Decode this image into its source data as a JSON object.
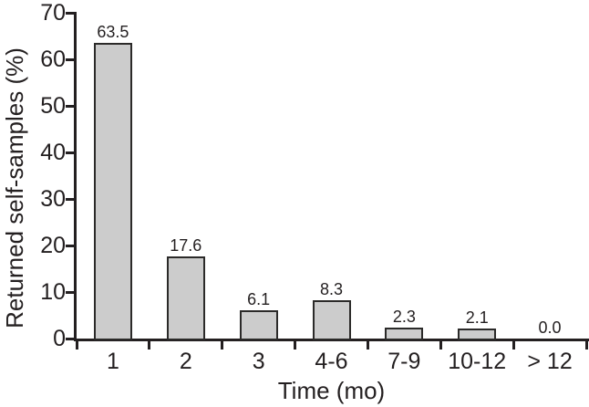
{
  "chart_data": {
    "type": "bar",
    "title": "",
    "xlabel": "Time (mo)",
    "ylabel": "Returned self-samples (%)",
    "categories": [
      "1",
      "2",
      "3",
      "4-6",
      "7-9",
      "10-12",
      "> 12"
    ],
    "values": [
      63.5,
      17.6,
      6.1,
      8.3,
      2.3,
      2.1,
      0.0
    ],
    "value_labels": [
      "63.5",
      "17.6",
      "6.1",
      "8.3",
      "2.3",
      "2.1",
      "0.0"
    ],
    "ylim": [
      0,
      70
    ],
    "yticks": [
      0,
      10,
      20,
      30,
      40,
      50,
      60,
      70
    ],
    "grid": false,
    "legend": null,
    "colors": {
      "bar_fill": "#cccccc",
      "bar_border": "#2b2a29",
      "axis": "#231f20",
      "text": "#231f20",
      "background": "#ffffff"
    }
  }
}
